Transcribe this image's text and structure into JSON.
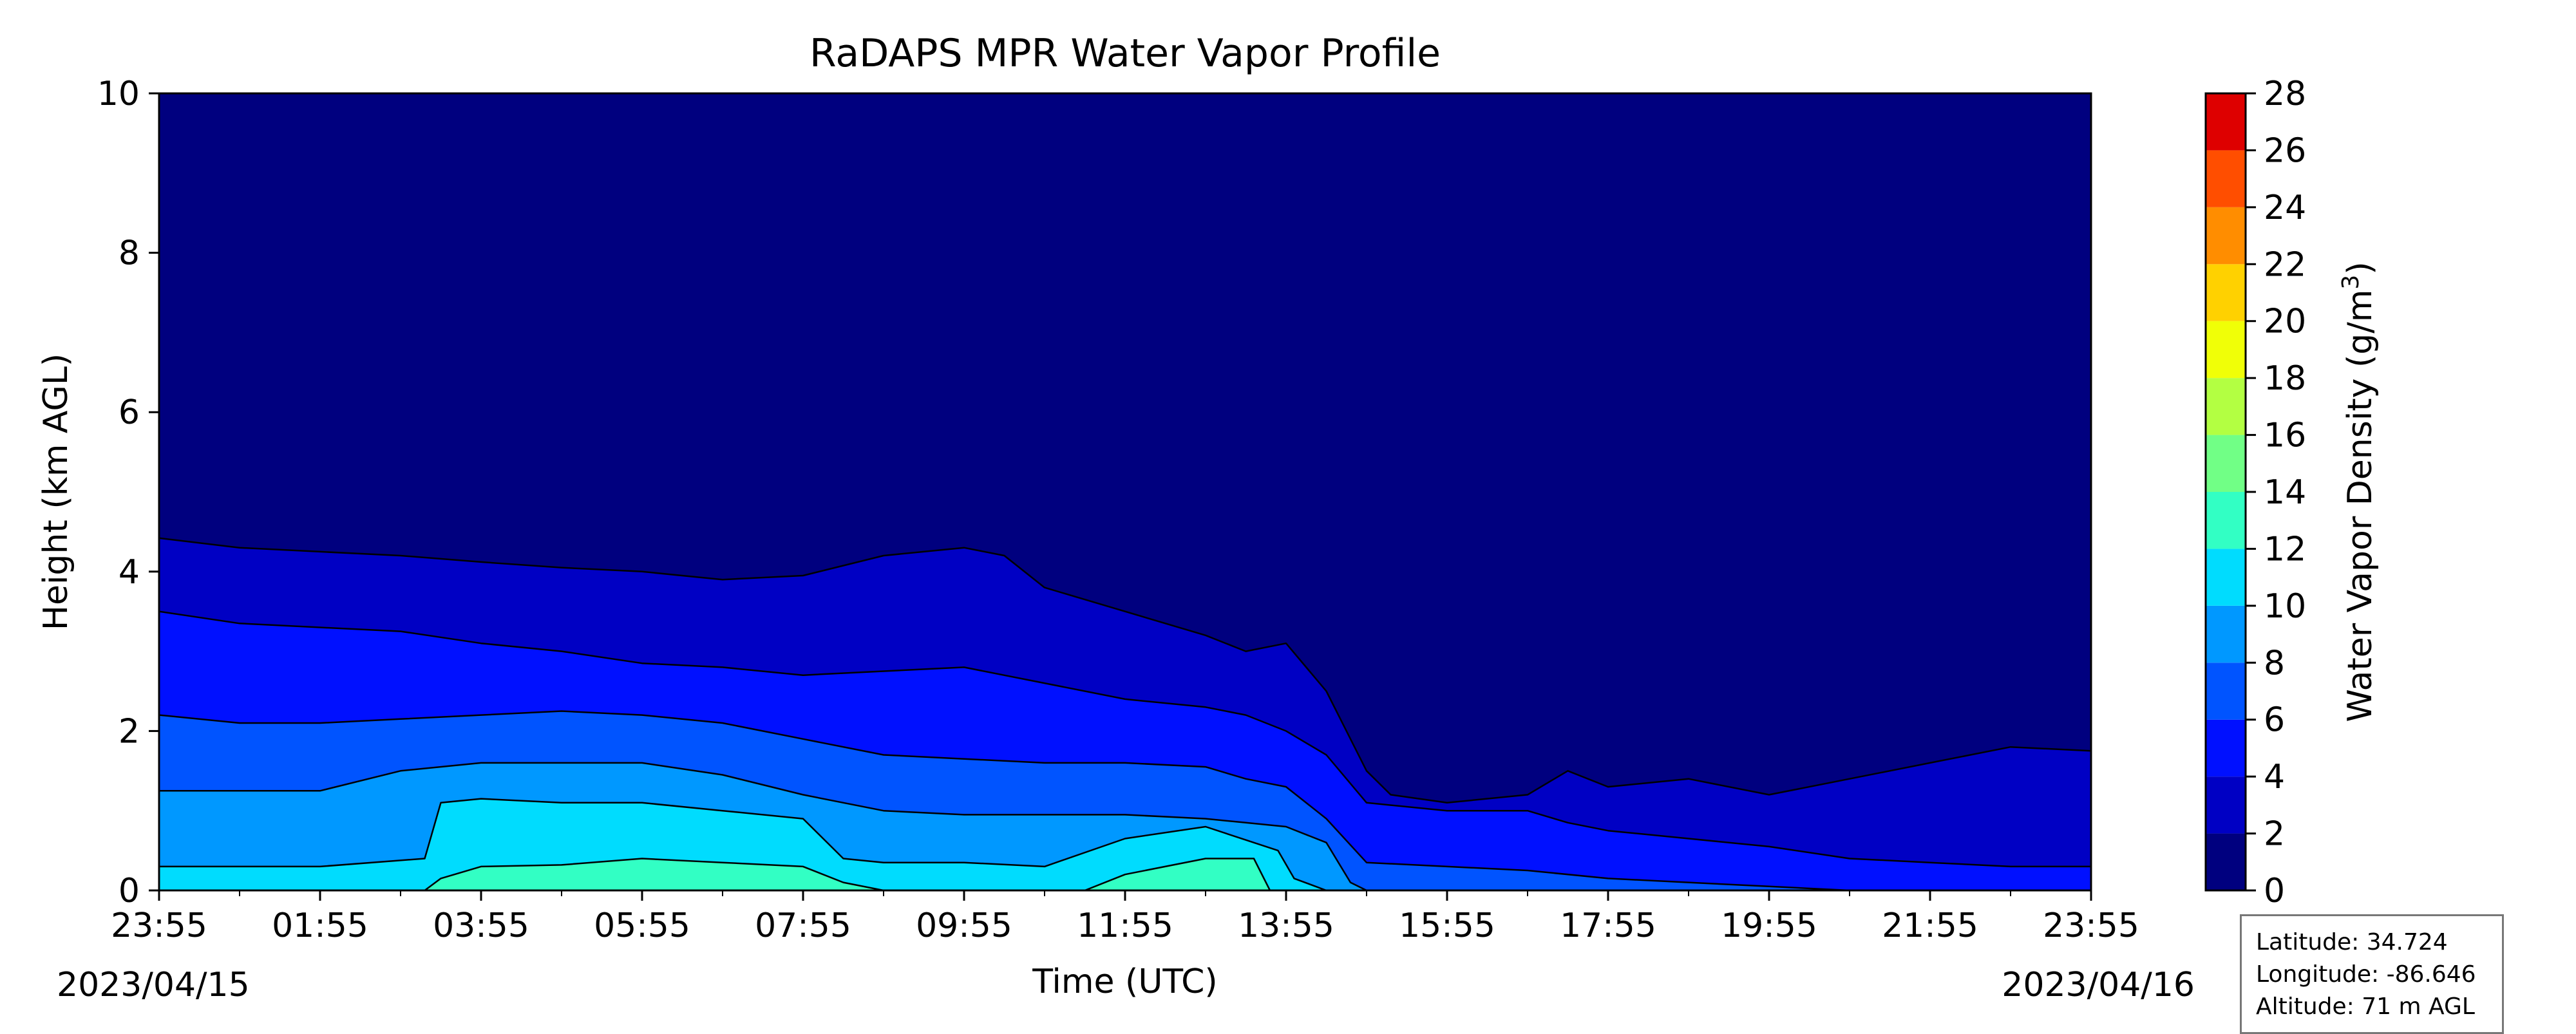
{
  "chart_data": {
    "type": "contour",
    "title": "RaDAPS MPR Water Vapor Profile",
    "xlabel": "Time (UTC)",
    "ylabel": "Height (km AGL)",
    "x_tick_labels": [
      "23:55",
      "01:55",
      "03:55",
      "05:55",
      "07:55",
      "09:55",
      "11:55",
      "13:55",
      "15:55",
      "17:55",
      "19:55",
      "21:55",
      "23:55"
    ],
    "x_range_hours": [
      0,
      24
    ],
    "start_date_label": "2023/04/15",
    "end_date_label": "2023/04/16",
    "ylim": [
      0,
      10
    ],
    "y_ticks": [
      0,
      2,
      4,
      6,
      8,
      10
    ],
    "colorbar": {
      "label": "Water Vapor Density (g/m³)",
      "label_main": "Water Vapor Density (g/m",
      "label_sup": "3",
      "label_end": ")",
      "levels": [
        0,
        2,
        4,
        6,
        8,
        10,
        12,
        14,
        16,
        18,
        20,
        22,
        24,
        26,
        28
      ],
      "colors": [
        "#00007f",
        "#0000c4",
        "#0010ff",
        "#0054ff",
        "#0098ff",
        "#00dcfe",
        "#32ffc4",
        "#71ff86",
        "#b3ff42",
        "#f0ff07",
        "#ffd100",
        "#ff8d00",
        "#ff4e00",
        "#de0000",
        "#7f0000"
      ]
    },
    "contour_bands": [
      {
        "level_range": [
          2,
          4
        ],
        "top_km": [
          [
            0,
            4.42
          ],
          [
            1,
            4.3
          ],
          [
            2,
            4.25
          ],
          [
            3,
            4.2
          ],
          [
            4,
            4.12
          ],
          [
            5,
            4.05
          ],
          [
            6,
            4.0
          ],
          [
            7,
            3.9
          ],
          [
            8,
            3.95
          ],
          [
            9,
            4.2
          ],
          [
            10,
            4.3
          ],
          [
            10.5,
            4.2
          ],
          [
            11,
            3.8
          ],
          [
            12,
            3.5
          ],
          [
            13,
            3.2
          ],
          [
            13.5,
            3.0
          ],
          [
            14,
            3.1
          ],
          [
            14.5,
            2.5
          ],
          [
            15,
            1.5
          ],
          [
            15.3,
            1.2
          ],
          [
            16,
            1.1
          ],
          [
            17,
            1.2
          ],
          [
            17.5,
            1.5
          ],
          [
            18,
            1.3
          ],
          [
            19,
            1.4
          ],
          [
            20,
            1.2
          ],
          [
            21,
            1.4
          ],
          [
            22,
            1.6
          ],
          [
            23,
            1.8
          ],
          [
            24,
            1.75
          ]
        ]
      },
      {
        "level_range": [
          4,
          6
        ],
        "top_km": [
          [
            0,
            3.5
          ],
          [
            1,
            3.35
          ],
          [
            2,
            3.3
          ],
          [
            3,
            3.25
          ],
          [
            4,
            3.1
          ],
          [
            5,
            3.0
          ],
          [
            6,
            2.85
          ],
          [
            7,
            2.8
          ],
          [
            8,
            2.7
          ],
          [
            9,
            2.75
          ],
          [
            10,
            2.8
          ],
          [
            11,
            2.6
          ],
          [
            12,
            2.4
          ],
          [
            13,
            2.3
          ],
          [
            13.5,
            2.2
          ],
          [
            14,
            2.0
          ],
          [
            14.5,
            1.7
          ],
          [
            15,
            1.1
          ],
          [
            16,
            1.0
          ],
          [
            17,
            1.0
          ],
          [
            17.5,
            0.85
          ],
          [
            18,
            0.75
          ],
          [
            19,
            0.65
          ],
          [
            20,
            0.55
          ],
          [
            21,
            0.4
          ],
          [
            22,
            0.35
          ],
          [
            23,
            0.3
          ],
          [
            24,
            0.3
          ]
        ]
      },
      {
        "level_range": [
          6,
          8
        ],
        "top_km": [
          [
            0,
            2.2
          ],
          [
            1,
            2.1
          ],
          [
            2,
            2.1
          ],
          [
            3,
            2.15
          ],
          [
            4,
            2.2
          ],
          [
            5,
            2.25
          ],
          [
            6,
            2.2
          ],
          [
            7,
            2.1
          ],
          [
            8,
            1.9
          ],
          [
            9,
            1.7
          ],
          [
            10,
            1.65
          ],
          [
            11,
            1.6
          ],
          [
            12,
            1.6
          ],
          [
            13,
            1.55
          ],
          [
            13.5,
            1.4
          ],
          [
            14,
            1.3
          ],
          [
            14.5,
            0.9
          ],
          [
            15,
            0.35
          ],
          [
            16,
            0.3
          ],
          [
            17,
            0.25
          ],
          [
            18,
            0.15
          ],
          [
            19,
            0.1
          ],
          [
            20,
            0.05
          ],
          [
            21,
            0.0
          ],
          [
            24,
            0.0
          ]
        ]
      },
      {
        "level_range": [
          8,
          10
        ],
        "top_km": [
          [
            0,
            1.25
          ],
          [
            1,
            1.25
          ],
          [
            2,
            1.25
          ],
          [
            3,
            1.5
          ],
          [
            4,
            1.6
          ],
          [
            5,
            1.6
          ],
          [
            6,
            1.6
          ],
          [
            7,
            1.45
          ],
          [
            8,
            1.2
          ],
          [
            9,
            1.0
          ],
          [
            10,
            0.95
          ],
          [
            11,
            0.95
          ],
          [
            12,
            0.95
          ],
          [
            13,
            0.9
          ],
          [
            13.5,
            0.85
          ],
          [
            14,
            0.8
          ],
          [
            14.5,
            0.6
          ],
          [
            14.8,
            0.1
          ],
          [
            15,
            0.0
          ],
          [
            24,
            0.0
          ]
        ]
      },
      {
        "level_range": [
          10,
          12
        ],
        "top_km": [
          [
            0,
            0.3
          ],
          [
            2,
            0.3
          ],
          [
            3.3,
            0.4
          ],
          [
            3.5,
            1.1
          ],
          [
            4,
            1.15
          ],
          [
            5,
            1.1
          ],
          [
            6,
            1.1
          ],
          [
            7,
            1.0
          ],
          [
            8,
            0.9
          ],
          [
            8.5,
            0.4
          ],
          [
            9,
            0.35
          ],
          [
            10,
            0.35
          ],
          [
            11,
            0.3
          ],
          [
            12,
            0.65
          ],
          [
            13,
            0.8
          ],
          [
            13.9,
            0.5
          ],
          [
            14.1,
            0.15
          ],
          [
            14.5,
            0.0
          ],
          [
            24,
            0.0
          ]
        ]
      },
      {
        "level_range": [
          12,
          14
        ],
        "top_km": [
          [
            0,
            0.0
          ],
          [
            3.3,
            0.0
          ],
          [
            3.5,
            0.15
          ],
          [
            4,
            0.3
          ],
          [
            5,
            0.32
          ],
          [
            6,
            0.4
          ],
          [
            7,
            0.35
          ],
          [
            8,
            0.3
          ],
          [
            8.5,
            0.1
          ],
          [
            9,
            0.0
          ],
          [
            11.5,
            0.0
          ],
          [
            12,
            0.2
          ],
          [
            13,
            0.4
          ],
          [
            13.6,
            0.4
          ],
          [
            13.8,
            0.0
          ],
          [
            24,
            0.0
          ]
        ]
      }
    ]
  },
  "info_box": {
    "latitude": "Latitude: 34.724",
    "longitude": "Longitude: -86.646",
    "altitude": "Altitude: 71 m AGL"
  }
}
